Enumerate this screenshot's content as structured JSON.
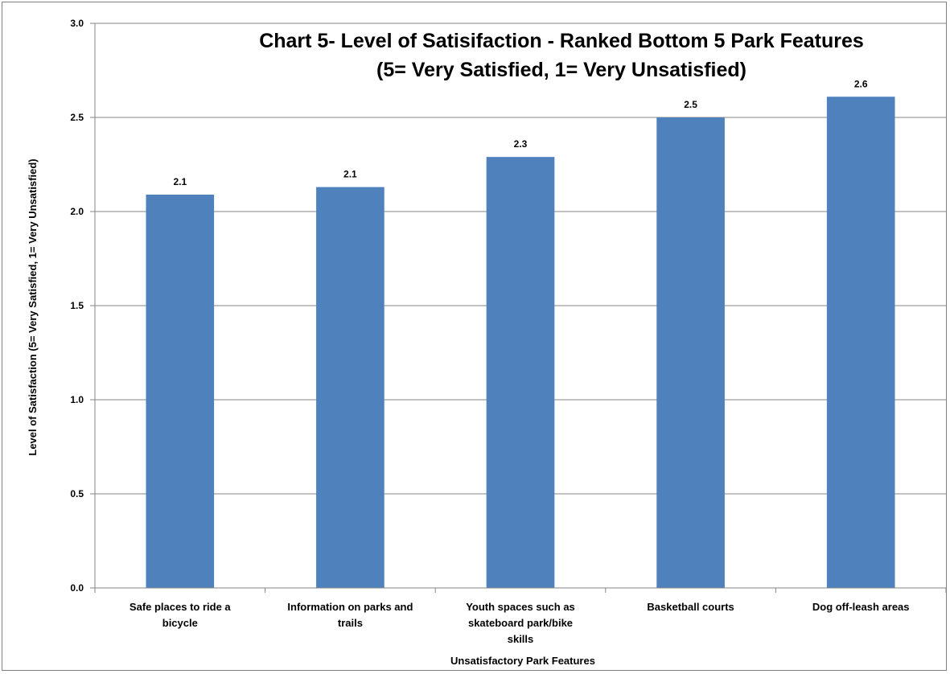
{
  "chart_data": {
    "type": "bar",
    "title_lines": [
      "Chart 5- Level of Satisifaction - Ranked Bottom 5 Park Features",
      "(5= Very Satisfied, 1= Very Unsatisfied)"
    ],
    "categories": [
      [
        "Safe places to ride a",
        "bicycle"
      ],
      [
        "Information on parks and",
        "trails"
      ],
      [
        "Youth spaces such as",
        "skateboard park/bike",
        "skills"
      ],
      [
        "Basketball courts"
      ],
      [
        "Dog off-leash areas"
      ]
    ],
    "values": [
      2.09,
      2.13,
      2.29,
      2.5,
      2.61
    ],
    "data_labels": [
      "2.1",
      "2.1",
      "2.3",
      "2.5",
      "2.6"
    ],
    "xlabel": "Unsatisfactory Park Features",
    "ylabel": "Level of Satisfaction (5= Very  Satisfied, 1= Very Unsatisfied)",
    "ylim": [
      0,
      3
    ],
    "yticks": [
      "0.0",
      "0.5",
      "1.0",
      "1.5",
      "2.0",
      "2.5",
      "3.0"
    ],
    "grid": true,
    "colors": {
      "bar": "#4f81bd",
      "grid": "#868686",
      "axis": "#868686"
    }
  }
}
